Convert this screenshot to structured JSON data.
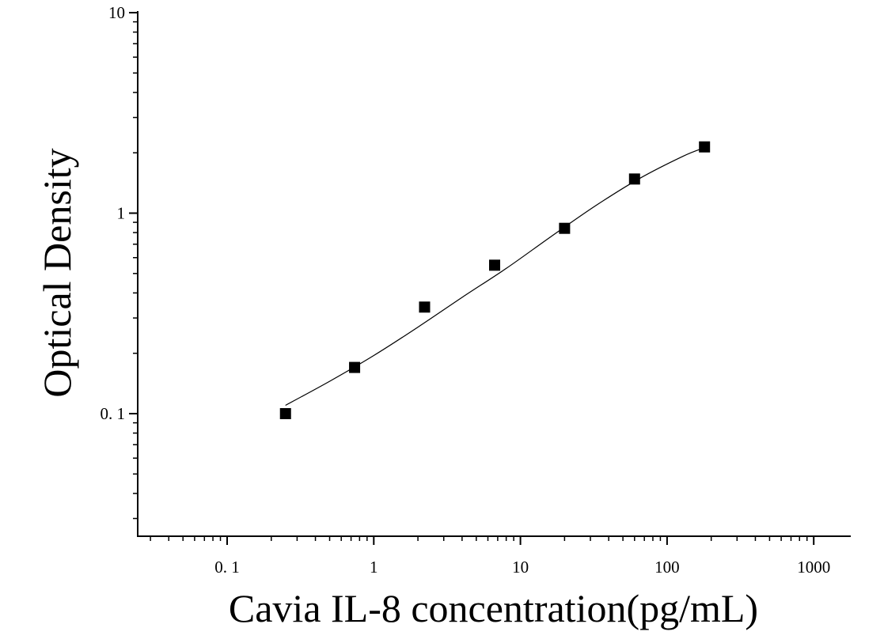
{
  "chart_data": {
    "type": "scatter",
    "title": "",
    "xlabel": "Cavia IL-8 concentration(pg/mL)",
    "ylabel": "Optical Density",
    "xscale": "log",
    "yscale": "log",
    "xlim": [
      0.03,
      2000
    ],
    "ylim": [
      0.03,
      10
    ],
    "grid": false,
    "x_ticks": [
      0.1,
      1,
      10,
      100,
      1000
    ],
    "x_tick_labels": [
      "0. 1",
      "1",
      "10",
      "100",
      "1000"
    ],
    "y_ticks": [
      0.1,
      1,
      10
    ],
    "y_tick_labels": [
      "0. 1",
      "1",
      "10"
    ],
    "series": [
      {
        "marker": "square",
        "color": "#000000",
        "x": [
          0.25,
          0.74,
          2.22,
          6.67,
          20,
          60,
          180
        ],
        "y": [
          0.1,
          0.17,
          0.34,
          0.55,
          0.84,
          1.48,
          2.14
        ]
      }
    ],
    "fit_curve": {
      "color": "#000000",
      "x": [
        0.25,
        0.5,
        1,
        2,
        4,
        8,
        16,
        32,
        64,
        128,
        180
      ],
      "y": [
        0.11,
        0.145,
        0.195,
        0.27,
        0.38,
        0.53,
        0.76,
        1.08,
        1.48,
        1.92,
        2.12
      ]
    }
  }
}
